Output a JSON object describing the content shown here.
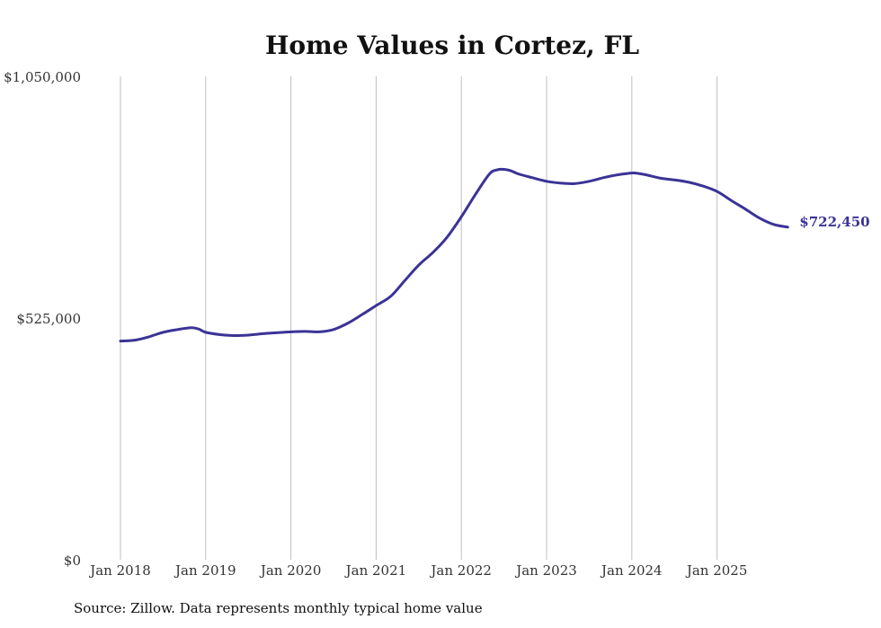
{
  "colors": {
    "line": "#3b3396",
    "grid": "#bfbfbf",
    "text": "#333333"
  },
  "chart_data": {
    "type": "line",
    "title": "Home Values in Cortez, FL",
    "xlabel": "",
    "ylabel": "",
    "ylim": [
      0,
      1050000
    ],
    "grid": "vertical",
    "y_ticks": [
      {
        "value": 0,
        "label": "$0"
      },
      {
        "value": 525000,
        "label": "$525,000"
      },
      {
        "value": 1050000,
        "label": "$1,050,000"
      }
    ],
    "x_ticks": [
      {
        "value": 2018.0,
        "label": "Jan 2018"
      },
      {
        "value": 2019.0,
        "label": "Jan 2019"
      },
      {
        "value": 2020.0,
        "label": "Jan 2020"
      },
      {
        "value": 2021.0,
        "label": "Jan 2021"
      },
      {
        "value": 2022.0,
        "label": "Jan 2022"
      },
      {
        "value": 2023.0,
        "label": "Jan 2023"
      },
      {
        "value": 2024.0,
        "label": "Jan 2024"
      },
      {
        "value": 2025.0,
        "label": "Jan 2025"
      }
    ],
    "x_range": [
      2017.7,
      2026.3
    ],
    "series": [
      {
        "name": "Typical home value",
        "end_label": "$722,450",
        "x": [
          2018.0,
          2018.17,
          2018.33,
          2018.5,
          2018.67,
          2018.83,
          2018.92,
          2019.0,
          2019.17,
          2019.33,
          2019.5,
          2019.67,
          2019.83,
          2020.0,
          2020.17,
          2020.33,
          2020.5,
          2020.67,
          2020.83,
          2021.0,
          2021.17,
          2021.33,
          2021.5,
          2021.67,
          2021.83,
          2022.0,
          2022.17,
          2022.33,
          2022.42,
          2022.5,
          2022.58,
          2022.67,
          2022.83,
          2023.0,
          2023.17,
          2023.33,
          2023.5,
          2023.67,
          2023.83,
          2024.0,
          2024.08,
          2024.17,
          2024.33,
          2024.5,
          2024.67,
          2024.83,
          2025.0,
          2025.17,
          2025.33,
          2025.5,
          2025.67,
          2025.83
        ],
        "y": [
          475000,
          477000,
          484000,
          494000,
          500000,
          504000,
          501000,
          494000,
          489000,
          487000,
          488000,
          491000,
          493000,
          495000,
          496000,
          495000,
          500000,
          514000,
          532000,
          552000,
          572000,
          605000,
          640000,
          668000,
          700000,
          745000,
          795000,
          838000,
          847000,
          848000,
          845000,
          838000,
          830000,
          822000,
          818000,
          817000,
          822000,
          830000,
          836000,
          840000,
          839000,
          836000,
          829000,
          825000,
          820000,
          812000,
          800000,
          780000,
          762000,
          742000,
          728000,
          722450
        ]
      }
    ]
  },
  "source": "Source: Zillow. Data represents monthly typical home value"
}
